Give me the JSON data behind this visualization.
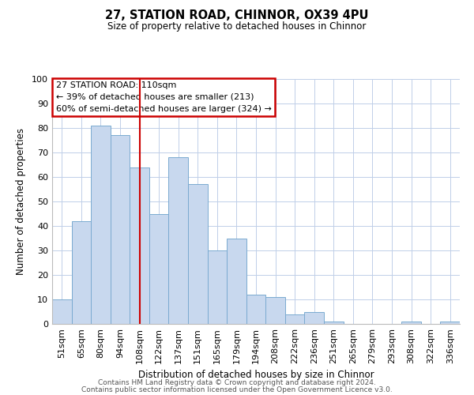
{
  "title": "27, STATION ROAD, CHINNOR, OX39 4PU",
  "subtitle": "Size of property relative to detached houses in Chinnor",
  "xlabel": "Distribution of detached houses by size in Chinnor",
  "ylabel": "Number of detached properties",
  "categories": [
    "51sqm",
    "65sqm",
    "80sqm",
    "94sqm",
    "108sqm",
    "122sqm",
    "137sqm",
    "151sqm",
    "165sqm",
    "179sqm",
    "194sqm",
    "208sqm",
    "222sqm",
    "236sqm",
    "251sqm",
    "265sqm",
    "279sqm",
    "293sqm",
    "308sqm",
    "322sqm",
    "336sqm"
  ],
  "values": [
    10,
    42,
    81,
    77,
    64,
    45,
    68,
    57,
    30,
    35,
    12,
    11,
    4,
    5,
    1,
    0,
    0,
    0,
    1,
    0,
    1
  ],
  "bar_color": "#c8d8ee",
  "bar_edge_color": "#7aaad0",
  "reference_line_x": 4,
  "reference_line_color": "#cc0000",
  "annotation_title": "27 STATION ROAD: 110sqm",
  "annotation_line1": "← 39% of detached houses are smaller (213)",
  "annotation_line2": "60% of semi-detached houses are larger (324) →",
  "annotation_box_color": "#cc0000",
  "ylim": [
    0,
    100
  ],
  "footer1": "Contains HM Land Registry data © Crown copyright and database right 2024.",
  "footer2": "Contains public sector information licensed under the Open Government Licence v3.0.",
  "background_color": "#ffffff",
  "grid_color": "#c0cfe8"
}
